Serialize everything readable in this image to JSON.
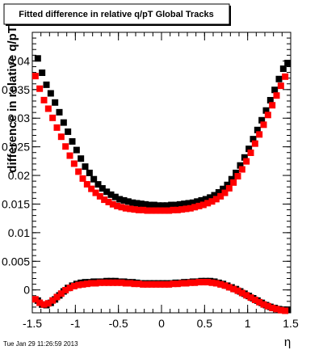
{
  "chart_data": {
    "type": "scatter",
    "title": "Fitted difference in relative q/pT  Global Tracks",
    "xlabel": "η",
    "ylabel": "difference in relative q/pT",
    "xlim": [
      -1.5,
      1.5
    ],
    "ylim": [
      -0.004,
      0.045
    ],
    "xticks": [
      -1.5,
      -1,
      -0.5,
      0,
      0.5,
      1,
      1.5
    ],
    "xtick_labels": [
      "-1.5",
      "-1",
      "-0.5",
      "0",
      "0.5",
      "1",
      "1.5"
    ],
    "yticks": [
      0,
      0.005,
      0.01,
      0.015,
      0.02,
      0.025,
      0.03,
      0.035,
      0.04
    ],
    "ytick_labels": [
      "0",
      "0.005",
      "0.01",
      "0.015",
      "0.02",
      "0.025",
      "0.03",
      "0.035",
      "0.04"
    ],
    "grid": false,
    "footer": "Tue Jan 29 11:26:59 2013",
    "series": [
      {
        "color": "#000000",
        "x": [
          -1.45,
          -1.4,
          -1.35,
          -1.3,
          -1.25,
          -1.2,
          -1.15,
          -1.1,
          -1.05,
          -1.0,
          -0.95,
          -0.9,
          -0.85,
          -0.8,
          -0.75,
          -0.7,
          -0.65,
          -0.6,
          -0.55,
          -0.5,
          -0.45,
          -0.4,
          -0.35,
          -0.3,
          -0.25,
          -0.2,
          -0.15,
          -0.1,
          -0.05,
          0.0,
          0.05,
          0.1,
          0.15,
          0.2,
          0.25,
          0.3,
          0.35,
          0.4,
          0.45,
          0.5,
          0.55,
          0.6,
          0.65,
          0.7,
          0.75,
          0.8,
          0.85,
          0.9,
          0.95,
          1.0,
          1.05,
          1.1,
          1.15,
          1.2,
          1.25,
          1.3,
          1.35,
          1.4,
          1.45
        ],
        "y_upper": [
          0.0403,
          0.0378,
          0.0357,
          0.0342,
          0.0326,
          0.0309,
          0.0291,
          0.0275,
          0.0258,
          0.0243,
          0.0228,
          0.0214,
          0.0203,
          0.0192,
          0.0183,
          0.0176,
          0.017,
          0.0165,
          0.0161,
          0.0157,
          0.0155,
          0.0153,
          0.0151,
          0.015,
          0.0149,
          0.0148,
          0.0147,
          0.0147,
          0.0146,
          0.0146,
          0.0146,
          0.0147,
          0.0147,
          0.0148,
          0.0149,
          0.015,
          0.0151,
          0.0153,
          0.0155,
          0.0157,
          0.016,
          0.0164,
          0.0169,
          0.0175,
          0.0182,
          0.0192,
          0.0203,
          0.0216,
          0.023,
          0.0245,
          0.0262,
          0.0278,
          0.0295,
          0.0312,
          0.033,
          0.0348,
          0.0367,
          0.0385,
          0.0395
        ],
        "y_lower": [
          -0.002,
          -0.0027,
          -0.0028,
          -0.0024,
          -0.0018,
          -0.0011,
          -0.0004,
          0.0002,
          0.0006,
          0.0009,
          0.0011,
          0.0012,
          0.0012,
          0.0013,
          0.0013,
          0.0013,
          0.0014,
          0.0014,
          0.0014,
          0.0013,
          0.0013,
          0.0012,
          0.0012,
          0.0011,
          0.001,
          0.001,
          0.001,
          0.001,
          0.001,
          0.001,
          0.001,
          0.001,
          0.0011,
          0.0011,
          0.0012,
          0.0012,
          0.0013,
          0.0013,
          0.0014,
          0.0014,
          0.0014,
          0.0013,
          0.0011,
          0.0009,
          0.0006,
          0.0003,
          0.0,
          -0.0004,
          -0.0008,
          -0.0012,
          -0.0016,
          -0.002,
          -0.0024,
          -0.0028,
          -0.0031,
          -0.0033,
          -0.0035,
          -0.0036,
          -0.0036
        ]
      },
      {
        "color": "#ff0000",
        "x": [
          -1.45,
          -1.4,
          -1.35,
          -1.3,
          -1.25,
          -1.2,
          -1.15,
          -1.1,
          -1.05,
          -1.0,
          -0.95,
          -0.9,
          -0.85,
          -0.8,
          -0.75,
          -0.7,
          -0.65,
          -0.6,
          -0.55,
          -0.5,
          -0.45,
          -0.4,
          -0.35,
          -0.3,
          -0.25,
          -0.2,
          -0.15,
          -0.1,
          -0.05,
          0.0,
          0.05,
          0.1,
          0.15,
          0.2,
          0.25,
          0.3,
          0.35,
          0.4,
          0.45,
          0.5,
          0.55,
          0.6,
          0.65,
          0.7,
          0.75,
          0.8,
          0.85,
          0.9,
          0.95,
          1.0,
          1.05,
          1.1,
          1.15,
          1.2,
          1.25,
          1.3,
          1.35,
          1.4,
          1.45
        ],
        "y_upper": [
          0.0375,
          0.0353,
          0.0333,
          0.0318,
          0.0302,
          0.0285,
          0.0269,
          0.0252,
          0.0236,
          0.0222,
          0.0208,
          0.0196,
          0.0186,
          0.0178,
          0.0171,
          0.0165,
          0.0159,
          0.0155,
          0.0151,
          0.0148,
          0.0146,
          0.0144,
          0.0143,
          0.0142,
          0.0141,
          0.0141,
          0.014,
          0.014,
          0.014,
          0.014,
          0.014,
          0.014,
          0.0141,
          0.0141,
          0.0142,
          0.0143,
          0.0144,
          0.0146,
          0.0148,
          0.015,
          0.0153,
          0.0156,
          0.016,
          0.0165,
          0.0171,
          0.0179,
          0.0189,
          0.02,
          0.0212,
          0.0226,
          0.0241,
          0.0257,
          0.0273,
          0.029,
          0.0307,
          0.0324,
          0.0341,
          0.0358,
          0.0374
        ],
        "y_lower": [
          -0.0015,
          -0.0021,
          -0.0024,
          -0.0022,
          -0.0017,
          -0.0011,
          -0.0005,
          0.0001,
          0.0005,
          0.0008,
          0.001,
          0.0011,
          0.0012,
          0.0013,
          0.0013,
          0.0014,
          0.0014,
          0.0014,
          0.0014,
          0.0014,
          0.0014,
          0.0013,
          0.0013,
          0.0012,
          0.0012,
          0.0011,
          0.0011,
          0.0011,
          0.0011,
          0.0011,
          0.0011,
          0.0011,
          0.0012,
          0.0012,
          0.0013,
          0.0013,
          0.0014,
          0.0014,
          0.0015,
          0.0015,
          0.0015,
          0.0014,
          0.0013,
          0.0011,
          0.0009,
          0.0006,
          0.0003,
          0.0,
          -0.0004,
          -0.0008,
          -0.0012,
          -0.0016,
          -0.002,
          -0.0024,
          -0.0027,
          -0.003,
          -0.0032,
          -0.0034,
          -0.0035
        ]
      }
    ]
  }
}
